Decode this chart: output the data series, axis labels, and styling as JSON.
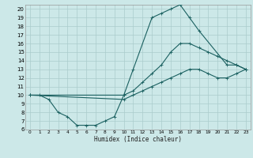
{
  "xlabel": "Humidex (Indice chaleur)",
  "bg_color": "#cce8e8",
  "grid_color": "#aacccc",
  "line_color": "#1a6060",
  "xlim": [
    -0.5,
    23.5
  ],
  "ylim": [
    6,
    20.5
  ],
  "xticks": [
    0,
    1,
    2,
    3,
    4,
    5,
    6,
    7,
    8,
    9,
    10,
    11,
    12,
    13,
    14,
    15,
    16,
    17,
    18,
    19,
    20,
    21,
    22,
    23
  ],
  "yticks": [
    6,
    7,
    8,
    9,
    10,
    11,
    12,
    13,
    14,
    15,
    16,
    17,
    18,
    19,
    20
  ],
  "curve1_x": [
    0,
    1,
    2,
    3,
    4,
    5,
    6,
    7,
    8,
    9,
    10,
    11,
    13,
    14,
    15,
    16,
    17,
    18,
    21,
    22,
    23
  ],
  "curve1_y": [
    10,
    10,
    9.5,
    8,
    7.5,
    6.5,
    6.5,
    6.5,
    7,
    7.5,
    10,
    13,
    19,
    19.5,
    20,
    20.5,
    19,
    17.5,
    13.5,
    13.5,
    13
  ],
  "curve2_x": [
    0,
    10,
    11,
    12,
    13,
    14,
    15,
    16,
    17,
    18,
    19,
    20,
    21,
    22,
    23
  ],
  "curve2_y": [
    10,
    10,
    10.5,
    11.5,
    12.5,
    13.5,
    15,
    16,
    16,
    15.5,
    15,
    14.5,
    14,
    13.5,
    13
  ],
  "curve3_x": [
    0,
    10,
    11,
    12,
    13,
    14,
    15,
    16,
    17,
    18,
    19,
    20,
    21,
    22,
    23
  ],
  "curve3_y": [
    10,
    9.5,
    10,
    10.5,
    11,
    11.5,
    12,
    12.5,
    13,
    13,
    12.5,
    12,
    12,
    12.5,
    13
  ]
}
